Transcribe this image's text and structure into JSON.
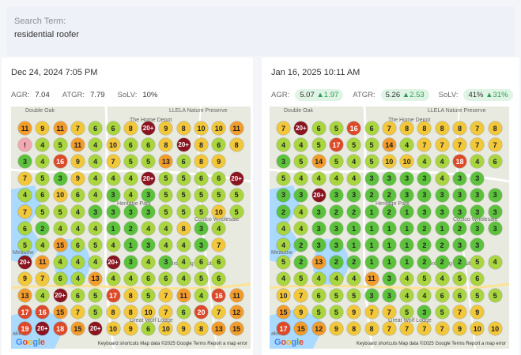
{
  "search": {
    "label": "Search Term:",
    "value": "residential roofer"
  },
  "left": {
    "title": "Dec 24, 2024 7:05 PM",
    "agr_label": "AGR:",
    "agr_value": "7.04",
    "atgr_label": "ATGR:",
    "atgr_value": "7.79",
    "solv_label": "SoLV:",
    "solv_value": "10%",
    "grid": [
      [
        "11",
        "9",
        "11",
        "7",
        "6",
        "6",
        "8",
        "20+",
        "9",
        "8",
        "10",
        "10",
        "11"
      ],
      [
        "!",
        "4",
        "5",
        "11",
        "4",
        "10",
        "6",
        "6",
        "8",
        "20+",
        "8",
        "6",
        "8"
      ],
      [
        "3",
        "4",
        "16",
        "9",
        "4",
        "7",
        "5",
        "5",
        "13",
        "6",
        "8",
        "9",
        ""
      ],
      [
        "7",
        "5",
        "3",
        "9",
        "4",
        "4",
        "4",
        "20+",
        "5",
        "5",
        "6",
        "6",
        "20+"
      ],
      [
        "4",
        "6",
        "10",
        "6",
        "4",
        "3",
        "4",
        "3",
        "5",
        "5",
        "5",
        "5",
        "5"
      ],
      [
        "7",
        "5",
        "5",
        "4",
        "3",
        "3",
        "3",
        "3",
        "5",
        "5",
        "5",
        "10",
        "5"
      ],
      [
        "6",
        "2",
        "4",
        "4",
        "4",
        "1",
        "2",
        "4",
        "4",
        "8",
        "3",
        "4",
        ""
      ],
      [
        "5",
        "4",
        "15",
        "6",
        "5",
        "4",
        "1",
        "3",
        "4",
        "4",
        "3",
        "7",
        ""
      ],
      [
        "20+",
        "11",
        "4",
        "4",
        "4",
        "20+",
        "3",
        "4",
        "3",
        "4",
        "6",
        "6",
        ""
      ],
      [
        "9",
        "7",
        "6",
        "4",
        "13",
        "4",
        "4",
        "6",
        "6",
        "4",
        "5",
        "6",
        ""
      ],
      [
        "13",
        "4",
        "20+",
        "6",
        "5",
        "17",
        "8",
        "5",
        "7",
        "11",
        "4",
        "16",
        "11"
      ],
      [
        "17",
        "16",
        "15",
        "7",
        "5",
        "8",
        "8",
        "10",
        "7",
        "6",
        "20",
        "7",
        "12"
      ],
      [
        "19",
        "20+",
        "18",
        "15",
        "20+",
        "10",
        "9",
        "6",
        "10",
        "9",
        "8",
        "13",
        "15"
      ]
    ]
  },
  "right": {
    "title": "Jan 16, 2025 10:11 AM",
    "agr_label": "AGR:",
    "agr_value": "5.07",
    "agr_delta": "1.97",
    "atgr_label": "ATGR:",
    "atgr_value": "5.26",
    "atgr_delta": "2.53",
    "solv_label": "SoLV:",
    "solv_value": "41%",
    "solv_delta": "31%",
    "grid": [
      [
        "7",
        "20+",
        "6",
        "5",
        "16",
        "6",
        "7",
        "8",
        "8",
        "8",
        "8",
        "7",
        "8"
      ],
      [
        "4",
        "4",
        "5",
        "17",
        "5",
        "5",
        "14",
        "4",
        "7",
        "7",
        "7",
        "7",
        "7"
      ],
      [
        "3",
        "5",
        "14",
        "5",
        "4",
        "5",
        "10",
        "10",
        "4",
        "4",
        "18",
        "4",
        "6"
      ],
      [
        "5",
        "4",
        "4",
        "4",
        "4",
        "3",
        "3",
        "3",
        "3",
        "4",
        "3",
        "3",
        ""
      ],
      [
        "3",
        "3",
        "20+",
        "3",
        "3",
        "2",
        "2",
        "3",
        "3",
        "3",
        "3",
        "3",
        "3"
      ],
      [
        "2",
        "4",
        "3",
        "2",
        "2",
        "1",
        "2",
        "1",
        "3",
        "3",
        "3",
        "3",
        "3"
      ],
      [
        "4",
        "4",
        "3",
        "3",
        "1",
        "1",
        "1",
        "1",
        "2",
        "1",
        "2",
        "3",
        "3"
      ],
      [
        "4",
        "2",
        "3",
        "3",
        "1",
        "1",
        "1",
        "1",
        "2",
        "2",
        "3",
        "3",
        ""
      ],
      [
        "5",
        "2",
        "13",
        "2",
        "2",
        "1",
        "1",
        "1",
        "2",
        "2",
        "2",
        "5",
        "4"
      ],
      [
        "4",
        "5",
        "4",
        "4",
        "4",
        "11",
        "3",
        "4",
        "5",
        "4",
        "5",
        "6",
        ""
      ],
      [
        "10",
        "7",
        "6",
        "5",
        "5",
        "3",
        "3",
        "4",
        "4",
        "6",
        "6",
        "5",
        "5"
      ],
      [
        "15",
        "9",
        "5",
        "5",
        "9",
        "7",
        "7",
        "5",
        "3",
        "5",
        "7",
        "9",
        ""
      ],
      [
        "17",
        "15",
        "12",
        "9",
        "8",
        "8",
        "7",
        "7",
        "7",
        "7",
        "9",
        "10",
        "10"
      ]
    ]
  },
  "map_text": {
    "google": "Google",
    "attribution": "Keyboard shortcuts   Map data ©2025 Google   Terms   Report a map error",
    "labels": [
      "Double Oak",
      "LLELA Nature Preserve",
      "The Home Depot",
      "Heritage Park",
      "Costco Wholesale",
      "Grooming & Boutique",
      "Meadow",
      "Great Wolf Lodge",
      "ake"
    ]
  },
  "colors": {
    "rank_1_3": "#5cc23c",
    "rank_4_6": "#a9d63e",
    "rank_7_10": "#f2c83a",
    "rank_11_15": "#f39c2a",
    "rank_16_20": "#dd4a2a",
    "rank_20_plus": "#8a1420",
    "not_found": "#f4a9b2",
    "water": "#aadaff"
  }
}
